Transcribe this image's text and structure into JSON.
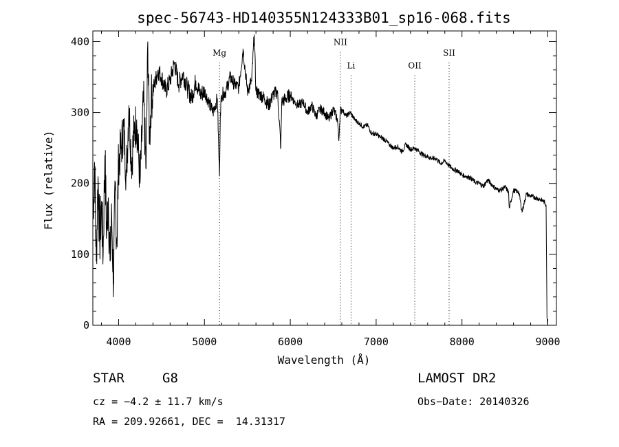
{
  "chart_data": {
    "type": "line",
    "title": "spec-56743-HD140355N124333B01_sp16-068.fits",
    "xlabel": "Wavelength (Å)",
    "ylabel": "Flux (relative)",
    "xlim": [
      3700,
      9100
    ],
    "ylim": [
      0,
      415
    ],
    "x_ticks": [
      "4000",
      "5000",
      "6000",
      "7000",
      "8000",
      "9000"
    ],
    "y_ticks": [
      "0",
      "100",
      "200",
      "300",
      "400"
    ],
    "grid": false,
    "series": [
      {
        "x": [
          3700,
          3720,
          3740,
          3760,
          3780,
          3800,
          3820,
          3840,
          3860,
          3880,
          3900,
          3920,
          3940,
          3960,
          3980,
          4000,
          4030,
          4060,
          4090,
          4120,
          4150,
          4180,
          4210,
          4250,
          4290,
          4320,
          4340,
          4360,
          4380,
          4420,
          4460,
          4500,
          4550,
          4600,
          4650,
          4700,
          4750,
          4800,
          4850,
          4900,
          4950,
          5000,
          5050,
          5100,
          5150,
          5175,
          5185,
          5200,
          5250,
          5300,
          5350,
          5400,
          5450,
          5500,
          5550,
          5580,
          5600,
          5650,
          5700,
          5750,
          5800,
          5850,
          5890,
          5900,
          5950,
          6000,
          6050,
          6100,
          6150,
          6200,
          6250,
          6300,
          6350,
          6400,
          6450,
          6500,
          6550,
          6565,
          6580,
          6600,
          6650,
          6700,
          6750,
          6800,
          6850,
          6900,
          6950,
          7000,
          7050,
          7100,
          7150,
          7200,
          7250,
          7300,
          7350,
          7400,
          7450,
          7500,
          7550,
          7600,
          7650,
          7700,
          7750,
          7800,
          7850,
          7900,
          7950,
          8000,
          8050,
          8100,
          8150,
          8200,
          8250,
          8300,
          8350,
          8400,
          8450,
          8500,
          8542,
          8550,
          8600,
          8662,
          8700,
          8750,
          8800,
          8850,
          8900,
          8950,
          8980,
          8990,
          9000
        ],
        "y": [
          150,
          230,
          90,
          210,
          120,
          170,
          100,
          240,
          130,
          180,
          90,
          150,
          60,
          190,
          120,
          230,
          250,
          280,
          210,
          310,
          230,
          270,
          290,
          200,
          320,
          220,
          400,
          260,
          320,
          340,
          360,
          350,
          330,
          345,
          370,
          340,
          355,
          335,
          320,
          345,
          325,
          330,
          315,
          300,
          320,
          210,
          300,
          325,
          330,
          350,
          340,
          335,
          390,
          330,
          345,
          410,
          330,
          325,
          320,
          310,
          325,
          330,
          250,
          315,
          320,
          325,
          315,
          310,
          315,
          300,
          310,
          295,
          305,
          300,
          290,
          305,
          290,
          260,
          300,
          305,
          295,
          300,
          290,
          285,
          280,
          282,
          270,
          270,
          265,
          262,
          255,
          250,
          252,
          245,
          255,
          248,
          250,
          245,
          240,
          238,
          235,
          235,
          228,
          232,
          225,
          220,
          218,
          212,
          210,
          208,
          202,
          200,
          196,
          205,
          198,
          192,
          190,
          195,
          188,
          165,
          190,
          188,
          160,
          185,
          182,
          180,
          178,
          175,
          170,
          10,
          0
        ]
      }
    ],
    "annotations": [
      {
        "label": "Mg",
        "x": 5175,
        "y": 380
      },
      {
        "label": "NII",
        "x": 6583,
        "y": 395
      },
      {
        "label": "Li",
        "x": 6708,
        "y": 362
      },
      {
        "label": "OII",
        "x": 7450,
        "y": 362
      },
      {
        "label": "SII",
        "x": 7850,
        "y": 380
      }
    ]
  },
  "info": {
    "object_class": "STAR",
    "subclass": "G8",
    "survey": "LAMOST DR2",
    "cz": "cz = −4.2 ± 11.7 km/s",
    "obs_date": "Obs−Date: 20140326",
    "coords": "RA = 209.92661, DEC =  14.31317"
  }
}
